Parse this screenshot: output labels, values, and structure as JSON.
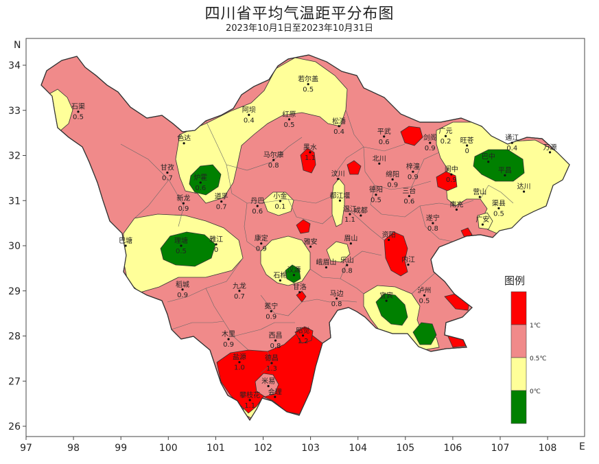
{
  "title": "四川省平均气温距平分布图",
  "subtitle": "2023年10月1日至2023年10月31日",
  "axes": {
    "x_unit": "E",
    "y_unit": "N",
    "x_ticks": [
      "97",
      "98",
      "99",
      "100",
      "101",
      "102",
      "103",
      "104",
      "105",
      "106",
      "107",
      "108"
    ],
    "y_ticks": [
      "34",
      "33",
      "32",
      "31",
      "30",
      "29",
      "28",
      "27",
      "26"
    ]
  },
  "colors": {
    "red": "#ff0000",
    "pink": "#f08a8a",
    "yellow": "#ffff99",
    "green": "#008000",
    "border": "#555555"
  },
  "legend": {
    "title": "图例",
    "labels": [
      "1℃",
      "0.5℃",
      "0℃"
    ]
  },
  "stations": [
    {
      "name": "石渠",
      "value": "0.5",
      "lon": 98.1,
      "lat": 32.97
    },
    {
      "name": "若尔盖",
      "value": "0.5",
      "lon": 102.95,
      "lat": 33.58
    },
    {
      "name": "阿坝",
      "value": "0.4",
      "lon": 101.7,
      "lat": 32.9
    },
    {
      "name": "红原",
      "value": "0.5",
      "lon": 102.55,
      "lat": 32.8
    },
    {
      "name": "松潘",
      "value": "0.4",
      "lon": 103.6,
      "lat": 32.65
    },
    {
      "name": "平武",
      "value": "0.6",
      "lon": 104.55,
      "lat": 32.42
    },
    {
      "name": "广元",
      "value": "0.2",
      "lon": 105.85,
      "lat": 32.43
    },
    {
      "name": "旺苍",
      "value": "0",
      "lon": 106.3,
      "lat": 32.22
    },
    {
      "name": "通江",
      "value": "0.4",
      "lon": 107.25,
      "lat": 32.28
    },
    {
      "name": "巴中",
      "value": "",
      "lon": 106.75,
      "lat": 31.86
    },
    {
      "name": "平昌",
      "value": "",
      "lon": 107.1,
      "lat": 31.56
    },
    {
      "name": "万源",
      "value": "",
      "lon": 108.05,
      "lat": 32.07
    },
    {
      "name": "达川",
      "value": "",
      "lon": 107.5,
      "lat": 31.2
    },
    {
      "name": "甘孜",
      "value": "0.7",
      "lon": 99.98,
      "lat": 31.62
    },
    {
      "name": "色达",
      "value": "",
      "lon": 100.33,
      "lat": 32.27
    },
    {
      "name": "炉霍",
      "value": "0.6",
      "lon": 100.68,
      "lat": 31.4
    },
    {
      "name": "马尔康",
      "value": "0.8",
      "lon": 102.22,
      "lat": 31.9
    },
    {
      "name": "黑水",
      "value": "1.1",
      "lon": 102.99,
      "lat": 32.07
    },
    {
      "name": "汶川",
      "value": "",
      "lon": 103.58,
      "lat": 31.48
    },
    {
      "name": "北川",
      "value": "",
      "lon": 104.45,
      "lat": 31.82
    },
    {
      "name": "梓潼",
      "value": "0.9",
      "lon": 105.16,
      "lat": 31.64
    },
    {
      "name": "剑阁",
      "value": "0.9",
      "lon": 105.52,
      "lat": 32.28
    },
    {
      "name": "阆中",
      "value": "0.9",
      "lon": 105.97,
      "lat": 31.58
    },
    {
      "name": "绵阳",
      "value": "0.9",
      "lon": 104.73,
      "lat": 31.47
    },
    {
      "name": "德阳",
      "value": "0.5",
      "lon": 104.38,
      "lat": 31.13
    },
    {
      "name": "三台",
      "value": "0.6",
      "lon": 105.08,
      "lat": 31.1
    },
    {
      "name": "南充",
      "value": "",
      "lon": 106.08,
      "lat": 30.8
    },
    {
      "name": "营山",
      "value": "",
      "lon": 106.57,
      "lat": 31.08
    },
    {
      "name": "渠县",
      "value": "0.5",
      "lon": 106.97,
      "lat": 30.83
    },
    {
      "name": "广安",
      "value": "",
      "lon": 106.63,
      "lat": 30.47
    },
    {
      "name": "新龙",
      "value": "0.9",
      "lon": 100.32,
      "lat": 30.94
    },
    {
      "name": "道孚",
      "value": "0.7",
      "lon": 101.12,
      "lat": 30.98
    },
    {
      "name": "丹巴",
      "value": "0.6",
      "lon": 101.88,
      "lat": 30.88
    },
    {
      "name": "小金",
      "value": "0.1",
      "lon": 102.36,
      "lat": 30.99
    },
    {
      "name": "都江堰",
      "value": "",
      "lon": 103.62,
      "lat": 31.0
    },
    {
      "name": "温江",
      "value": "1.1",
      "lon": 103.83,
      "lat": 30.7
    },
    {
      "name": "成都",
      "value": "",
      "lon": 104.06,
      "lat": 30.67
    },
    {
      "name": "遂宁",
      "value": "0.8",
      "lon": 105.58,
      "lat": 30.5
    },
    {
      "name": "理塘",
      "value": "0.5",
      "lon": 100.27,
      "lat": 30.0
    },
    {
      "name": "巴塘",
      "value": "",
      "lon": 99.1,
      "lat": 30.0
    },
    {
      "name": "雅江",
      "value": "0",
      "lon": 101.01,
      "lat": 30.03
    },
    {
      "name": "康定",
      "value": "0.9",
      "lon": 101.96,
      "lat": 30.05
    },
    {
      "name": "雅安",
      "value": "",
      "lon": 103.0,
      "lat": 29.98
    },
    {
      "name": "眉山",
      "value": "",
      "lon": 103.85,
      "lat": 30.05
    },
    {
      "name": "内江",
      "value": "",
      "lon": 105.06,
      "lat": 29.58
    },
    {
      "name": "资阳",
      "value": "",
      "lon": 104.65,
      "lat": 30.13
    },
    {
      "name": "乐山",
      "value": "0.8",
      "lon": 103.77,
      "lat": 29.57
    },
    {
      "name": "石棉",
      "value": "",
      "lon": 102.36,
      "lat": 29.23
    },
    {
      "name": "峨眉山",
      "value": "",
      "lon": 103.33,
      "lat": 29.52
    },
    {
      "name": "汉源",
      "value": "",
      "lon": 102.65,
      "lat": 29.35
    },
    {
      "name": "稻城",
      "value": "0.9",
      "lon": 100.3,
      "lat": 29.03
    },
    {
      "name": "九龙",
      "value": "0.7",
      "lon": 101.5,
      "lat": 29.0
    },
    {
      "name": "甘洛",
      "value": "",
      "lon": 102.77,
      "lat": 28.97
    },
    {
      "name": "马边",
      "value": "0.8",
      "lon": 103.55,
      "lat": 28.83
    },
    {
      "name": "宜宾",
      "value": "",
      "lon": 104.6,
      "lat": 28.78
    },
    {
      "name": "泸州",
      "value": "0.5",
      "lon": 105.4,
      "lat": 28.9
    },
    {
      "name": "冕宁",
      "value": "0.9",
      "lon": 102.17,
      "lat": 28.55
    },
    {
      "name": "木里",
      "value": "0.9",
      "lon": 101.27,
      "lat": 27.93
    },
    {
      "name": "西昌",
      "value": "0.8",
      "lon": 102.26,
      "lat": 27.9
    },
    {
      "name": "昭觉",
      "value": "1.2",
      "lon": 102.84,
      "lat": 28.01
    },
    {
      "name": "盐源",
      "value": "1.0",
      "lon": 101.5,
      "lat": 27.42
    },
    {
      "name": "德昌",
      "value": "1.3",
      "lon": 102.18,
      "lat": 27.4
    },
    {
      "name": "米易",
      "value": "",
      "lon": 102.11,
      "lat": 26.89
    },
    {
      "name": "攀枝花",
      "value": "1.1",
      "lon": 101.72,
      "lat": 26.58
    },
    {
      "name": "会理",
      "value": "",
      "lon": 102.25,
      "lat": 26.65
    }
  ]
}
